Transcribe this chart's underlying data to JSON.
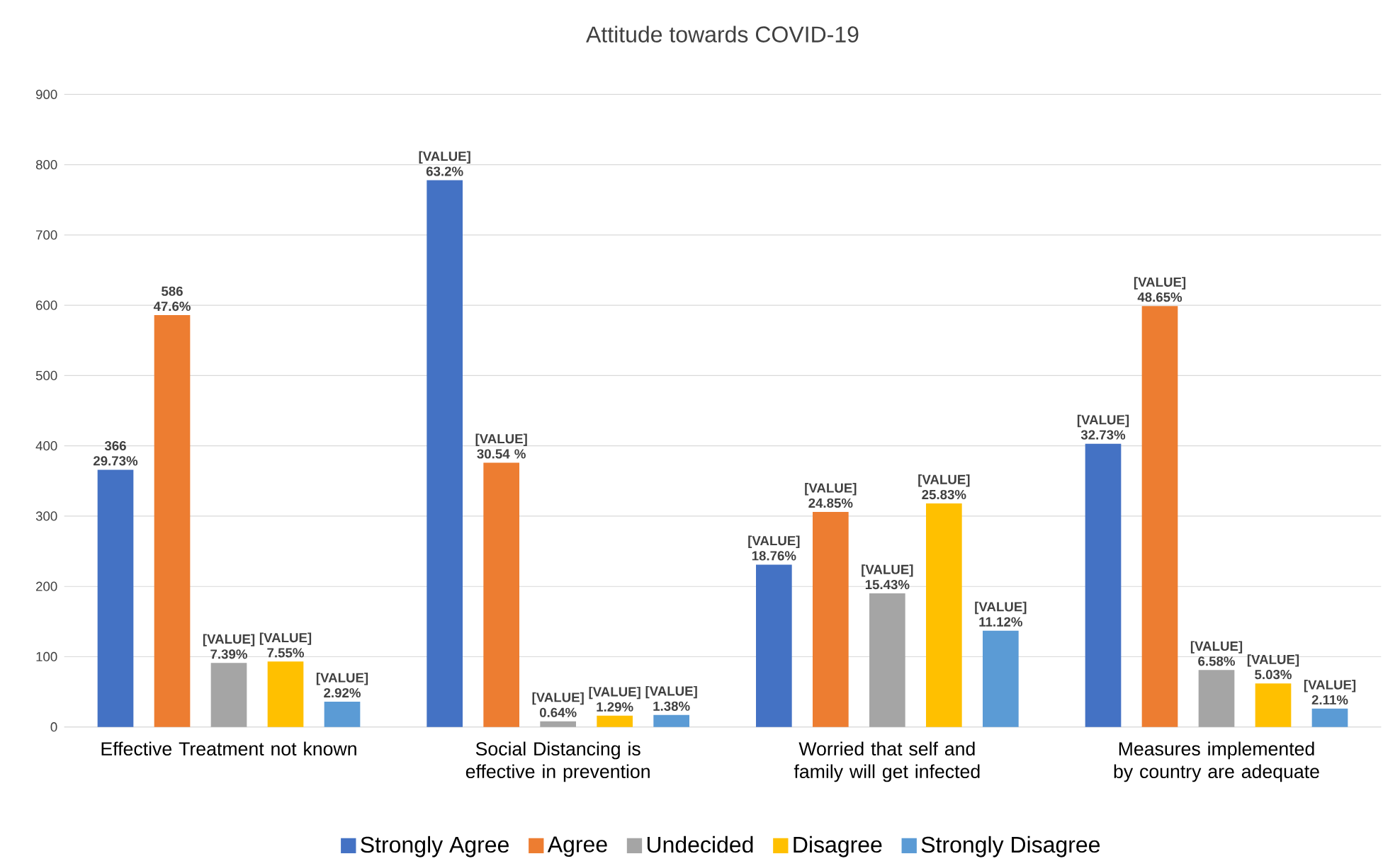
{
  "chart_data": {
    "type": "bar",
    "title": "Attitude towards COVID-19",
    "categories": [
      "Effective Treatment not known",
      "Social Distancing is effective in prevention",
      "Worried that self and family will get infected",
      "Measures implemented by country are adequate"
    ],
    "series": [
      {
        "name": "Strongly Agree",
        "color": "#4472c4",
        "values": [
          366,
          778,
          231,
          403
        ]
      },
      {
        "name": "Agree",
        "color": "#ed7d31",
        "values": [
          586,
          376,
          306,
          599
        ]
      },
      {
        "name": "Undecided",
        "color": "#a5a5a5",
        "values": [
          91,
          8,
          190,
          81
        ]
      },
      {
        "name": "Disagree",
        "color": "#ffc000",
        "values": [
          93,
          16,
          318,
          62
        ]
      },
      {
        "name": "Strongly Disagree",
        "color": "#5b9bd5",
        "values": [
          36,
          17,
          137,
          26
        ]
      }
    ],
    "annotations": [
      "366 29.73%",
      "586 47.6%",
      "[VALUE] 7.39%",
      "[VALUE] 7.55%",
      "[VALUE] 2.92%",
      "[VALUE] 63.2%",
      "[VALUE] 30.54 %",
      "[VALUE] 0.64%",
      "[VALUE] 1.29%",
      "[VALUE] 1.38%",
      "[VALUE] 18.76%",
      "[VALUE] 24.85%",
      "[VALUE] 15.43%",
      "[VALUE] 25.83%",
      "[VALUE] 11.12%",
      "[VALUE] 32.73%",
      "[VALUE] 48.65%",
      "[VALUE] 6.58%",
      "[VALUE] 5.03%",
      "[VALUE] 2.11%"
    ],
    "ylim": [
      0,
      900
    ],
    "yticks": [
      0,
      100,
      200,
      300,
      400,
      500,
      600,
      700,
      800,
      900
    ],
    "grid": "y",
    "legend": "bottom"
  }
}
